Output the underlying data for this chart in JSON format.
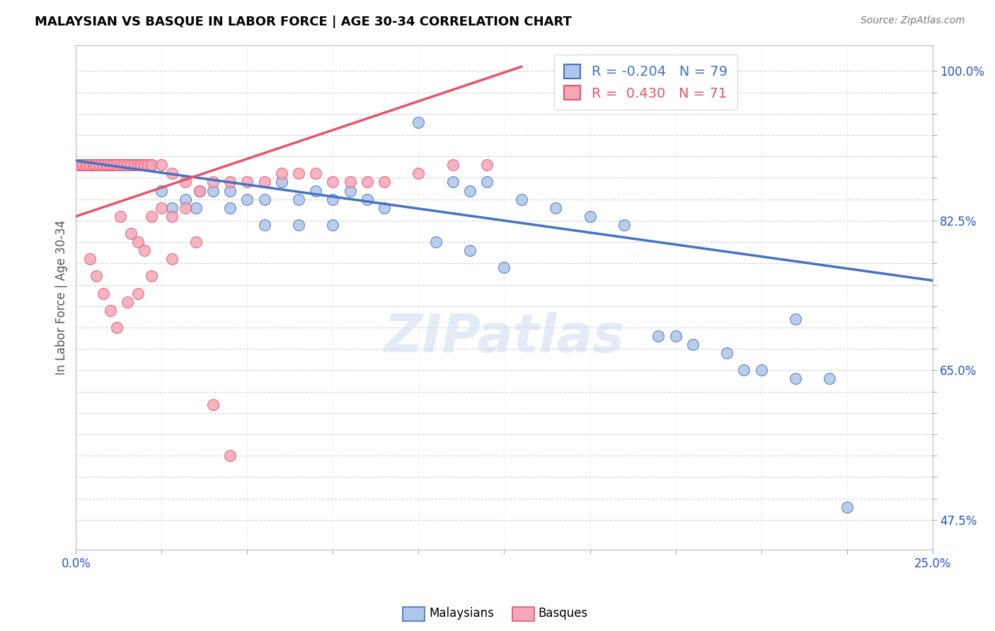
{
  "title": "MALAYSIAN VS BASQUE IN LABOR FORCE | AGE 30-34 CORRELATION CHART",
  "source_text": "Source: ZipAtlas.com",
  "ylabel": "In Labor Force | Age 30-34",
  "xlim": [
    0.0,
    0.25
  ],
  "ylim": [
    0.44,
    1.03
  ],
  "R_blue": -0.204,
  "N_blue": 79,
  "R_pink": 0.43,
  "N_pink": 71,
  "blue_color": "#aec6e8",
  "pink_color": "#f4a7b9",
  "blue_line_color": "#4472c4",
  "pink_line_color": "#e8546a",
  "watermark_text": "ZIPatlas",
  "blue_line_x": [
    0.0,
    0.25
  ],
  "blue_line_y": [
    0.895,
    0.755
  ],
  "pink_line_x": [
    0.0,
    0.13
  ],
  "pink_line_y": [
    0.83,
    1.005
  ],
  "blue_scatter_x": [
    0.001,
    0.001,
    0.002,
    0.002,
    0.003,
    0.003,
    0.004,
    0.004,
    0.004,
    0.005,
    0.005,
    0.005,
    0.006,
    0.006,
    0.006,
    0.007,
    0.007,
    0.007,
    0.008,
    0.008,
    0.008,
    0.009,
    0.009,
    0.01,
    0.01,
    0.011,
    0.011,
    0.012,
    0.012,
    0.013,
    0.014,
    0.015,
    0.016,
    0.017,
    0.018,
    0.019,
    0.02,
    0.022,
    0.025,
    0.028,
    0.032,
    0.036,
    0.04,
    0.045,
    0.05,
    0.055,
    0.06,
    0.065,
    0.07,
    0.075,
    0.08,
    0.085,
    0.09,
    0.1,
    0.11,
    0.115,
    0.12,
    0.13,
    0.14,
    0.15,
    0.16,
    0.17,
    0.175,
    0.18,
    0.19,
    0.195,
    0.2,
    0.21,
    0.22,
    0.225,
    0.035,
    0.045,
    0.055,
    0.065,
    0.075,
    0.105,
    0.115,
    0.125,
    0.21
  ],
  "blue_scatter_y": [
    0.89,
    0.89,
    0.89,
    0.89,
    0.89,
    0.89,
    0.89,
    0.89,
    0.89,
    0.89,
    0.89,
    0.89,
    0.89,
    0.89,
    0.89,
    0.89,
    0.89,
    0.89,
    0.89,
    0.89,
    0.89,
    0.89,
    0.89,
    0.89,
    0.89,
    0.89,
    0.89,
    0.89,
    0.89,
    0.89,
    0.89,
    0.89,
    0.89,
    0.89,
    0.89,
    0.89,
    0.89,
    0.89,
    0.86,
    0.84,
    0.85,
    0.86,
    0.86,
    0.86,
    0.85,
    0.85,
    0.87,
    0.85,
    0.86,
    0.85,
    0.86,
    0.85,
    0.84,
    0.94,
    0.87,
    0.86,
    0.87,
    0.85,
    0.84,
    0.83,
    0.82,
    0.69,
    0.69,
    0.68,
    0.67,
    0.65,
    0.65,
    0.64,
    0.64,
    0.49,
    0.84,
    0.84,
    0.82,
    0.82,
    0.82,
    0.8,
    0.79,
    0.77,
    0.71
  ],
  "pink_scatter_x": [
    0.001,
    0.001,
    0.002,
    0.002,
    0.003,
    0.003,
    0.004,
    0.004,
    0.005,
    0.005,
    0.006,
    0.006,
    0.007,
    0.007,
    0.008,
    0.008,
    0.009,
    0.009,
    0.01,
    0.01,
    0.011,
    0.011,
    0.012,
    0.013,
    0.014,
    0.015,
    0.016,
    0.017,
    0.018,
    0.019,
    0.02,
    0.021,
    0.022,
    0.025,
    0.028,
    0.032,
    0.036,
    0.04,
    0.045,
    0.05,
    0.055,
    0.06,
    0.065,
    0.07,
    0.075,
    0.08,
    0.085,
    0.09,
    0.1,
    0.11,
    0.12,
    0.013,
    0.016,
    0.018,
    0.02,
    0.022,
    0.025,
    0.028,
    0.032,
    0.004,
    0.006,
    0.008,
    0.01,
    0.012,
    0.015,
    0.018,
    0.022,
    0.028,
    0.035,
    0.04,
    0.045
  ],
  "pink_scatter_y": [
    0.89,
    0.89,
    0.89,
    0.89,
    0.89,
    0.89,
    0.89,
    0.89,
    0.89,
    0.89,
    0.89,
    0.89,
    0.89,
    0.89,
    0.89,
    0.89,
    0.89,
    0.89,
    0.89,
    0.89,
    0.89,
    0.89,
    0.89,
    0.89,
    0.89,
    0.89,
    0.89,
    0.89,
    0.89,
    0.89,
    0.89,
    0.89,
    0.89,
    0.89,
    0.88,
    0.87,
    0.86,
    0.87,
    0.87,
    0.87,
    0.87,
    0.88,
    0.88,
    0.88,
    0.87,
    0.87,
    0.87,
    0.87,
    0.88,
    0.89,
    0.89,
    0.83,
    0.81,
    0.8,
    0.79,
    0.83,
    0.84,
    0.83,
    0.84,
    0.78,
    0.76,
    0.74,
    0.72,
    0.7,
    0.73,
    0.74,
    0.76,
    0.78,
    0.8,
    0.61,
    0.55
  ]
}
